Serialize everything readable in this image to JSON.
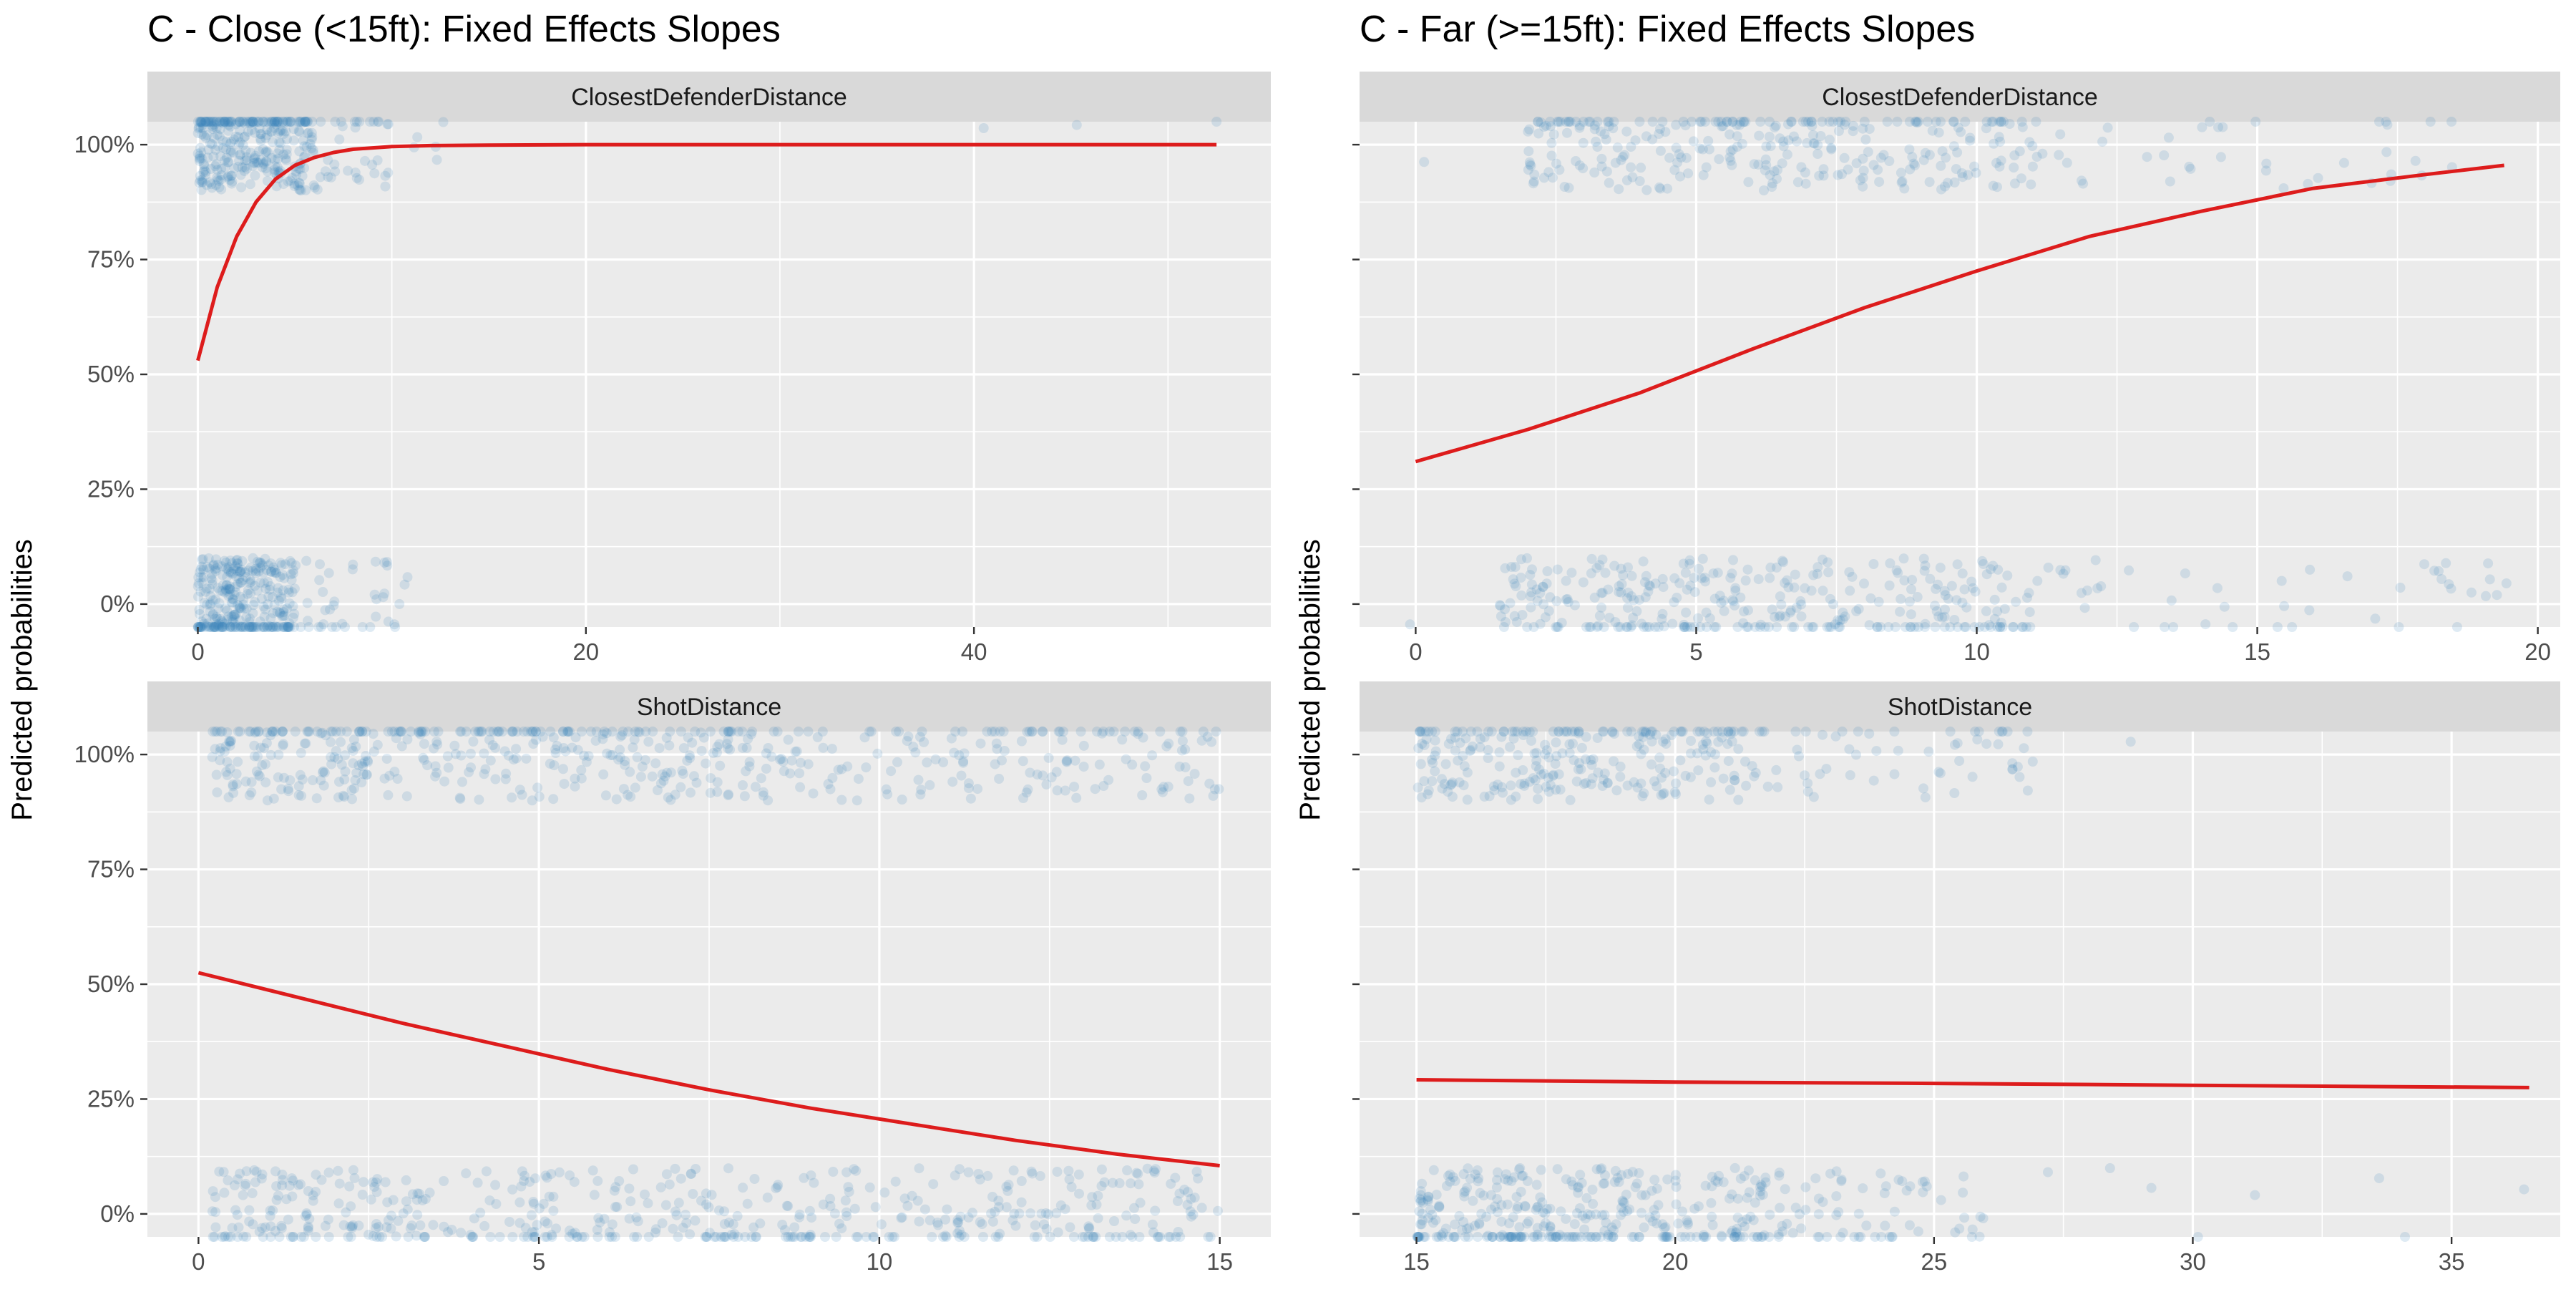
{
  "chart_data": [
    {
      "type": "scatter",
      "title": "C - Close (<15ft): Fixed Effects Slopes",
      "facet": "ClosestDefenderDistance",
      "ylabel": "Predicted probabilities",
      "xlim": [
        -2.6,
        55.3
      ],
      "ylim": [
        -0.05,
        1.05
      ],
      "x_ticks": [
        0,
        20,
        40
      ],
      "y_ticks": [
        0,
        0.25,
        0.5,
        0.75,
        1.0
      ],
      "y_tick_labels": [
        "0%",
        "25%",
        "50%",
        "75%",
        "100%"
      ],
      "grid": true,
      "series": [
        {
          "kind": "fitted_line",
          "color": "#dd1c1c",
          "x": [
            0,
            1,
            2,
            3,
            4,
            5,
            6,
            7,
            8,
            10,
            12,
            15,
            20,
            30,
            40,
            52.5
          ],
          "y": [
            0.53,
            0.69,
            0.8,
            0.875,
            0.925,
            0.955,
            0.972,
            0.983,
            0.99,
            0.996,
            0.998,
            0.999,
            1.0,
            1.0,
            1.0,
            1.0
          ]
        },
        {
          "kind": "jittered_points",
          "color": "#3a80ba",
          "groups": [
            {
              "outcome": 1,
              "x_range": [
                0,
                6
              ],
              "count": 320
            },
            {
              "outcome": 1,
              "x_range": [
                6,
                13
              ],
              "count": 40
            },
            {
              "outcome": 1,
              "x": [
                40.5,
                45.3,
                52.5
              ]
            },
            {
              "outcome": 0,
              "x_range": [
                0,
                5
              ],
              "count": 320
            },
            {
              "outcome": 0,
              "x_range": [
                5,
                11.5
              ],
              "count": 40
            }
          ]
        }
      ]
    },
    {
      "type": "scatter",
      "title": "C - Far (>=15ft): Fixed Effects Slopes",
      "facet": "ClosestDefenderDistance",
      "ylabel": "Predicted probabilities",
      "xlim": [
        -1.0,
        20.4
      ],
      "ylim": [
        -0.05,
        1.05
      ],
      "x_ticks": [
        0,
        5,
        10,
        15,
        20
      ],
      "y_ticks": [
        0,
        0.25,
        0.5,
        0.75,
        1.0
      ],
      "grid": true,
      "series": [
        {
          "kind": "fitted_line",
          "color": "#dd1c1c",
          "x": [
            0,
            2,
            4,
            6,
            8,
            10,
            12,
            14,
            16,
            18,
            19.4
          ],
          "y": [
            0.31,
            0.38,
            0.46,
            0.555,
            0.645,
            0.725,
            0.8,
            0.855,
            0.905,
            0.935,
            0.955
          ]
        },
        {
          "kind": "jittered_points",
          "color": "#3a80ba",
          "groups": [
            {
              "outcome": 1,
              "x_range": [
                2,
                11
              ],
              "count": 300
            },
            {
              "outcome": 1,
              "x_range": [
                11,
                18.5
              ],
              "count": 40
            },
            {
              "outcome": 1,
              "x": [
                0.15
              ]
            },
            {
              "outcome": 0,
              "x_range": [
                1.5,
                11
              ],
              "count": 330
            },
            {
              "outcome": 0,
              "x_range": [
                11,
                19.5
              ],
              "count": 45
            },
            {
              "outcome": 0,
              "x": [
                -0.1
              ]
            }
          ]
        }
      ]
    },
    {
      "type": "scatter",
      "facet": "ShotDistance",
      "ylabel": "Predicted probabilities",
      "xlim": [
        -0.75,
        15.75
      ],
      "ylim": [
        -0.05,
        1.05
      ],
      "x_ticks": [
        0,
        5,
        10,
        15
      ],
      "y_ticks": [
        0,
        0.25,
        0.5,
        0.75,
        1.0
      ],
      "grid": true,
      "series": [
        {
          "kind": "fitted_line",
          "color": "#dd1c1c",
          "x": [
            0,
            1.5,
            3,
            4.5,
            6,
            7.5,
            9,
            10.5,
            12,
            13.5,
            15
          ],
          "y": [
            0.525,
            0.47,
            0.415,
            0.365,
            0.315,
            0.27,
            0.23,
            0.195,
            0.16,
            0.13,
            0.105
          ]
        },
        {
          "kind": "jittered_points",
          "color": "#3a80ba",
          "groups": [
            {
              "outcome": 1,
              "x_range": [
                0.2,
                8
              ],
              "count": 380
            },
            {
              "outcome": 1,
              "x_range": [
                8,
                15
              ],
              "count": 180
            },
            {
              "outcome": 0,
              "x_range": [
                0.2,
                15
              ],
              "count": 520
            }
          ]
        }
      ]
    },
    {
      "type": "scatter",
      "facet": "ShotDistance",
      "ylabel": "Predicted probabilities",
      "xlim": [
        13.9,
        37.1
      ],
      "ylim": [
        -0.05,
        1.05
      ],
      "x_ticks": [
        15,
        20,
        25,
        30,
        35
      ],
      "y_ticks": [
        0,
        0.25,
        0.5,
        0.75,
        1.0
      ],
      "grid": true,
      "series": [
        {
          "kind": "fitted_line",
          "color": "#dd1c1c",
          "x": [
            15,
            20,
            25,
            30,
            36.5
          ],
          "y": [
            0.292,
            0.287,
            0.284,
            0.28,
            0.275
          ]
        },
        {
          "kind": "jittered_points",
          "color": "#3a80ba",
          "groups": [
            {
              "outcome": 1,
              "x_range": [
                15,
                21.5
              ],
              "count": 260
            },
            {
              "outcome": 1,
              "x_range": [
                21.5,
                27
              ],
              "count": 60
            },
            {
              "outcome": 1,
              "x": [
                28.8
              ]
            },
            {
              "outcome": 0,
              "x_range": [
                15,
                21.8
              ],
              "count": 340
            },
            {
              "outcome": 0,
              "x_range": [
                21.8,
                26
              ],
              "count": 70
            },
            {
              "outcome": 0,
              "x": [
                27.2,
                28.4,
                29.2,
                30.1,
                31.2,
                33.6,
                34.1,
                36.4
              ]
            }
          ]
        }
      ]
    }
  ]
}
